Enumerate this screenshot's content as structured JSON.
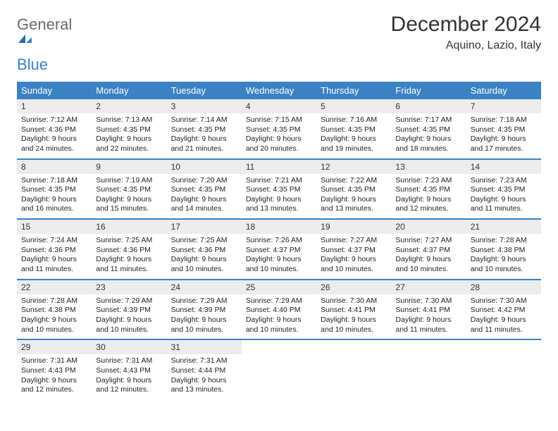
{
  "logo": {
    "general": "General",
    "blue": "Blue"
  },
  "title": "December 2024",
  "location": "Aquino, Lazio, Italy",
  "colors": {
    "header_bg": "#3b82c4",
    "header_text": "#ffffff",
    "daynum_bg": "#ececec",
    "text": "#222222",
    "title_text": "#333333",
    "logo_gray": "#6a6a6a",
    "logo_blue": "#3b82c4",
    "row_border": "#3b82c4",
    "page_bg": "#ffffff"
  },
  "typography": {
    "title_fontsize": 30,
    "location_fontsize": 16,
    "header_fontsize": 13,
    "daynum_fontsize": 12,
    "body_fontsize": 10.5
  },
  "layout": {
    "columns": 7,
    "rows": 5,
    "cell_min_height": 78
  },
  "dayNames": [
    "Sunday",
    "Monday",
    "Tuesday",
    "Wednesday",
    "Thursday",
    "Friday",
    "Saturday"
  ],
  "days": [
    {
      "n": "1",
      "sr": "Sunrise: 7:12 AM",
      "ss": "Sunset: 4:36 PM",
      "dl": "Daylight: 9 hours and 24 minutes."
    },
    {
      "n": "2",
      "sr": "Sunrise: 7:13 AM",
      "ss": "Sunset: 4:35 PM",
      "dl": "Daylight: 9 hours and 22 minutes."
    },
    {
      "n": "3",
      "sr": "Sunrise: 7:14 AM",
      "ss": "Sunset: 4:35 PM",
      "dl": "Daylight: 9 hours and 21 minutes."
    },
    {
      "n": "4",
      "sr": "Sunrise: 7:15 AM",
      "ss": "Sunset: 4:35 PM",
      "dl": "Daylight: 9 hours and 20 minutes."
    },
    {
      "n": "5",
      "sr": "Sunrise: 7:16 AM",
      "ss": "Sunset: 4:35 PM",
      "dl": "Daylight: 9 hours and 19 minutes."
    },
    {
      "n": "6",
      "sr": "Sunrise: 7:17 AM",
      "ss": "Sunset: 4:35 PM",
      "dl": "Daylight: 9 hours and 18 minutes."
    },
    {
      "n": "7",
      "sr": "Sunrise: 7:18 AM",
      "ss": "Sunset: 4:35 PM",
      "dl": "Daylight: 9 hours and 17 minutes."
    },
    {
      "n": "8",
      "sr": "Sunrise: 7:18 AM",
      "ss": "Sunset: 4:35 PM",
      "dl": "Daylight: 9 hours and 16 minutes."
    },
    {
      "n": "9",
      "sr": "Sunrise: 7:19 AM",
      "ss": "Sunset: 4:35 PM",
      "dl": "Daylight: 9 hours and 15 minutes."
    },
    {
      "n": "10",
      "sr": "Sunrise: 7:20 AM",
      "ss": "Sunset: 4:35 PM",
      "dl": "Daylight: 9 hours and 14 minutes."
    },
    {
      "n": "11",
      "sr": "Sunrise: 7:21 AM",
      "ss": "Sunset: 4:35 PM",
      "dl": "Daylight: 9 hours and 13 minutes."
    },
    {
      "n": "12",
      "sr": "Sunrise: 7:22 AM",
      "ss": "Sunset: 4:35 PM",
      "dl": "Daylight: 9 hours and 13 minutes."
    },
    {
      "n": "13",
      "sr": "Sunrise: 7:23 AM",
      "ss": "Sunset: 4:35 PM",
      "dl": "Daylight: 9 hours and 12 minutes."
    },
    {
      "n": "14",
      "sr": "Sunrise: 7:23 AM",
      "ss": "Sunset: 4:35 PM",
      "dl": "Daylight: 9 hours and 11 minutes."
    },
    {
      "n": "15",
      "sr": "Sunrise: 7:24 AM",
      "ss": "Sunset: 4:36 PM",
      "dl": "Daylight: 9 hours and 11 minutes."
    },
    {
      "n": "16",
      "sr": "Sunrise: 7:25 AM",
      "ss": "Sunset: 4:36 PM",
      "dl": "Daylight: 9 hours and 11 minutes."
    },
    {
      "n": "17",
      "sr": "Sunrise: 7:25 AM",
      "ss": "Sunset: 4:36 PM",
      "dl": "Daylight: 9 hours and 10 minutes."
    },
    {
      "n": "18",
      "sr": "Sunrise: 7:26 AM",
      "ss": "Sunset: 4:37 PM",
      "dl": "Daylight: 9 hours and 10 minutes."
    },
    {
      "n": "19",
      "sr": "Sunrise: 7:27 AM",
      "ss": "Sunset: 4:37 PM",
      "dl": "Daylight: 9 hours and 10 minutes."
    },
    {
      "n": "20",
      "sr": "Sunrise: 7:27 AM",
      "ss": "Sunset: 4:37 PM",
      "dl": "Daylight: 9 hours and 10 minutes."
    },
    {
      "n": "21",
      "sr": "Sunrise: 7:28 AM",
      "ss": "Sunset: 4:38 PM",
      "dl": "Daylight: 9 hours and 10 minutes."
    },
    {
      "n": "22",
      "sr": "Sunrise: 7:28 AM",
      "ss": "Sunset: 4:38 PM",
      "dl": "Daylight: 9 hours and 10 minutes."
    },
    {
      "n": "23",
      "sr": "Sunrise: 7:29 AM",
      "ss": "Sunset: 4:39 PM",
      "dl": "Daylight: 9 hours and 10 minutes."
    },
    {
      "n": "24",
      "sr": "Sunrise: 7:29 AM",
      "ss": "Sunset: 4:39 PM",
      "dl": "Daylight: 9 hours and 10 minutes."
    },
    {
      "n": "25",
      "sr": "Sunrise: 7:29 AM",
      "ss": "Sunset: 4:40 PM",
      "dl": "Daylight: 9 hours and 10 minutes."
    },
    {
      "n": "26",
      "sr": "Sunrise: 7:30 AM",
      "ss": "Sunset: 4:41 PM",
      "dl": "Daylight: 9 hours and 10 minutes."
    },
    {
      "n": "27",
      "sr": "Sunrise: 7:30 AM",
      "ss": "Sunset: 4:41 PM",
      "dl": "Daylight: 9 hours and 11 minutes."
    },
    {
      "n": "28",
      "sr": "Sunrise: 7:30 AM",
      "ss": "Sunset: 4:42 PM",
      "dl": "Daylight: 9 hours and 11 minutes."
    },
    {
      "n": "29",
      "sr": "Sunrise: 7:31 AM",
      "ss": "Sunset: 4:43 PM",
      "dl": "Daylight: 9 hours and 12 minutes."
    },
    {
      "n": "30",
      "sr": "Sunrise: 7:31 AM",
      "ss": "Sunset: 4:43 PM",
      "dl": "Daylight: 9 hours and 12 minutes."
    },
    {
      "n": "31",
      "sr": "Sunrise: 7:31 AM",
      "ss": "Sunset: 4:44 PM",
      "dl": "Daylight: 9 hours and 13 minutes."
    }
  ]
}
